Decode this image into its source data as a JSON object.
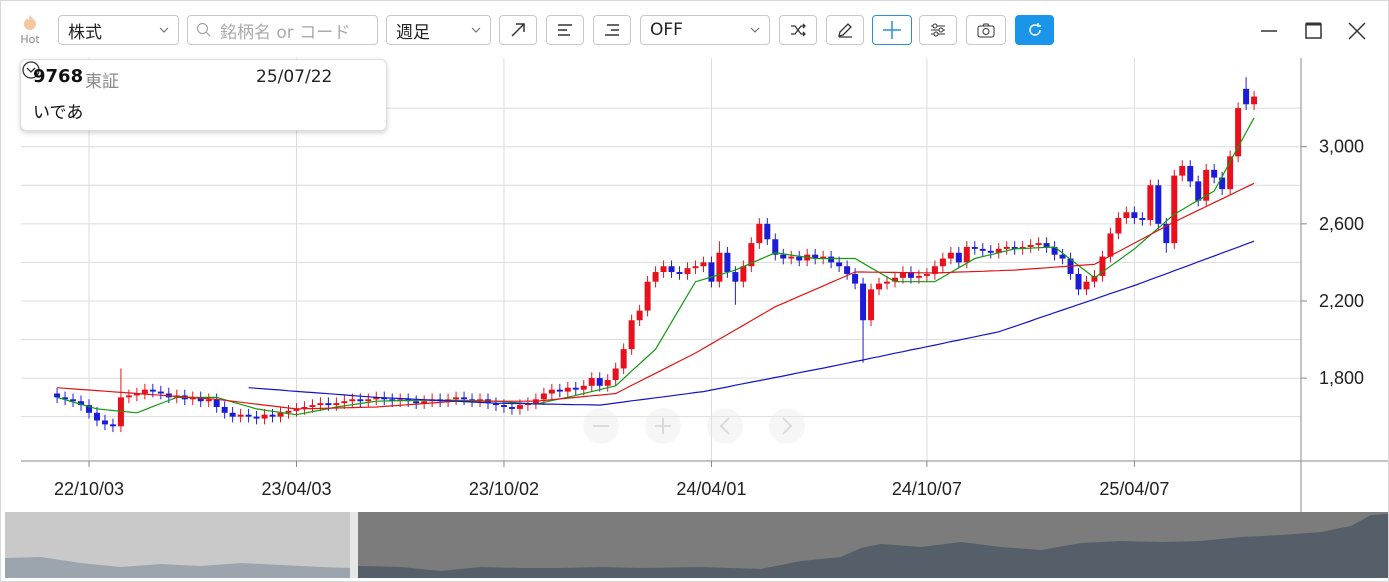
{
  "toolbar": {
    "hot": "Hot",
    "market": "株式",
    "search_placeholder": "銘柄名 or コード",
    "period": "週足",
    "indicator": "OFF"
  },
  "info": {
    "code": "9768",
    "exchange": "東証",
    "date": "25/07/22",
    "name": "いであ"
  },
  "chart_data": {
    "type": "candlestick",
    "categories": [
      null,
      null,
      null,
      null,
      "22/10/03",
      null,
      null,
      null,
      null,
      null,
      null,
      null,
      null,
      null,
      null,
      null,
      null,
      null,
      null,
      null,
      null,
      null,
      null,
      null,
      null,
      null,
      null,
      null,
      null,
      null,
      "23/04/03",
      null,
      null,
      null,
      null,
      null,
      null,
      null,
      null,
      null,
      null,
      null,
      null,
      null,
      null,
      null,
      null,
      null,
      null,
      null,
      null,
      null,
      null,
      null,
      null,
      null,
      "23/10/02",
      null,
      null,
      null,
      null,
      null,
      null,
      null,
      null,
      null,
      null,
      null,
      null,
      null,
      null,
      null,
      null,
      null,
      null,
      null,
      null,
      null,
      null,
      null,
      null,
      null,
      "24/04/01",
      null,
      null,
      null,
      null,
      null,
      null,
      null,
      null,
      null,
      null,
      null,
      null,
      null,
      null,
      null,
      null,
      null,
      null,
      null,
      null,
      null,
      null,
      null,
      null,
      null,
      null,
      "24/10/07",
      null,
      null,
      null,
      null,
      null,
      null,
      null,
      null,
      null,
      null,
      null,
      null,
      null,
      null,
      null,
      null,
      null,
      null,
      null,
      null,
      null,
      null,
      null,
      null,
      null,
      "25/04/07",
      null,
      null,
      null,
      null,
      null,
      null,
      null,
      null,
      null,
      null,
      null,
      null,
      null,
      null,
      null
    ],
    "open": [
      1720,
      1700,
      1690,
      1680,
      1660,
      1620,
      1580,
      1560,
      1550,
      1700,
      1710,
      1720,
      1740,
      1730,
      1720,
      1700,
      1710,
      1690,
      1700,
      1680,
      1690,
      1650,
      1620,
      1600,
      1610,
      1600,
      1590,
      1610,
      1600,
      1620,
      1630,
      1640,
      1650,
      1660,
      1670,
      1660,
      1670,
      1680,
      1690,
      1680,
      1690,
      1700,
      1690,
      1680,
      1690,
      1680,
      1670,
      1680,
      1690,
      1680,
      1690,
      1700,
      1690,
      1680,
      1690,
      1670,
      1660,
      1650,
      1640,
      1660,
      1670,
      1690,
      1720,
      1740,
      1730,
      1750,
      1740,
      1760,
      1800,
      1760,
      1790,
      1850,
      1950,
      2100,
      2150,
      2300,
      2350,
      2380,
      2350,
      2340,
      2370,
      2380,
      2400,
      2300,
      2450,
      2350,
      2300,
      2380,
      2500,
      2600,
      2520,
      2440,
      2420,
      2430,
      2410,
      2440,
      2420,
      2430,
      2400,
      2380,
      2340,
      2290,
      2100,
      2260,
      2290,
      2300,
      2320,
      2350,
      2320,
      2330,
      2340,
      2380,
      2420,
      2450,
      2400,
      2480,
      2470,
      2460,
      2450,
      2470,
      2480,
      2470,
      2480,
      2490,
      2500,
      2480,
      2440,
      2420,
      2340,
      2260,
      2300,
      2330,
      2430,
      2550,
      2630,
      2660,
      2630,
      2620,
      2800,
      2600,
      2500,
      2850,
      2900,
      2820,
      2720,
      2880,
      2840,
      2780,
      2950,
      3300,
      3220
    ],
    "high": [
      1750,
      1730,
      1720,
      1710,
      1690,
      1650,
      1610,
      1590,
      1850,
      1740,
      1750,
      1770,
      1770,
      1760,
      1750,
      1740,
      1740,
      1730,
      1730,
      1720,
      1720,
      1680,
      1650,
      1640,
      1640,
      1630,
      1640,
      1640,
      1650,
      1660,
      1670,
      1680,
      1690,
      1700,
      1700,
      1700,
      1710,
      1720,
      1720,
      1720,
      1730,
      1730,
      1720,
      1720,
      1720,
      1710,
      1710,
      1720,
      1720,
      1720,
      1730,
      1730,
      1720,
      1720,
      1720,
      1700,
      1690,
      1680,
      1690,
      1700,
      1720,
      1750,
      1770,
      1770,
      1780,
      1780,
      1790,
      1830,
      1830,
      1820,
      1880,
      1980,
      2130,
      2180,
      2330,
      2380,
      2410,
      2410,
      2380,
      2400,
      2410,
      2430,
      2430,
      2510,
      2480,
      2380,
      2410,
      2530,
      2630,
      2630,
      2550,
      2470,
      2460,
      2460,
      2470,
      2470,
      2460,
      2460,
      2430,
      2410,
      2370,
      2320,
      2290,
      2320,
      2330,
      2350,
      2380,
      2380,
      2360,
      2370,
      2410,
      2450,
      2480,
      2480,
      2510,
      2510,
      2500,
      2490,
      2500,
      2510,
      2510,
      2510,
      2520,
      2530,
      2530,
      2510,
      2470,
      2450,
      2370,
      2330,
      2360,
      2460,
      2580,
      2660,
      2690,
      2690,
      2660,
      2830,
      2830,
      2630,
      2880,
      2930,
      2930,
      2850,
      2910,
      2910,
      2870,
      2980,
      3230,
      3360,
      3290
    ],
    "low": [
      1670,
      1660,
      1650,
      1630,
      1590,
      1550,
      1530,
      1520,
      1520,
      1670,
      1680,
      1690,
      1700,
      1690,
      1670,
      1670,
      1660,
      1660,
      1650,
      1650,
      1620,
      1590,
      1570,
      1570,
      1570,
      1560,
      1560,
      1570,
      1570,
      1590,
      1600,
      1610,
      1620,
      1630,
      1630,
      1630,
      1640,
      1650,
      1650,
      1650,
      1660,
      1660,
      1650,
      1650,
      1650,
      1640,
      1640,
      1650,
      1650,
      1650,
      1660,
      1660,
      1650,
      1650,
      1640,
      1630,
      1620,
      1610,
      1610,
      1630,
      1640,
      1660,
      1690,
      1700,
      1700,
      1710,
      1710,
      1730,
      1730,
      1730,
      1760,
      1820,
      1920,
      2070,
      2120,
      2270,
      2320,
      2320,
      2310,
      2310,
      2340,
      2350,
      2270,
      2270,
      2320,
      2180,
      2270,
      2350,
      2470,
      2490,
      2410,
      2390,
      2390,
      2380,
      2380,
      2390,
      2390,
      2370,
      2350,
      2310,
      2260,
      1880,
      2070,
      2230,
      2260,
      2270,
      2290,
      2290,
      2290,
      2300,
      2310,
      2350,
      2390,
      2370,
      2370,
      2440,
      2430,
      2420,
      2420,
      2440,
      2440,
      2440,
      2450,
      2460,
      2450,
      2410,
      2390,
      2310,
      2230,
      2230,
      2270,
      2300,
      2400,
      2520,
      2600,
      2600,
      2590,
      2590,
      2570,
      2450,
      2470,
      2820,
      2790,
      2690,
      2690,
      2810,
      2750,
      2750,
      2920,
      3190,
      3190
    ],
    "close": [
      1700,
      1690,
      1680,
      1660,
      1620,
      1580,
      1560,
      1550,
      1700,
      1710,
      1720,
      1740,
      1730,
      1720,
      1700,
      1710,
      1690,
      1700,
      1680,
      1690,
      1650,
      1620,
      1600,
      1610,
      1600,
      1590,
      1610,
      1600,
      1620,
      1630,
      1640,
      1650,
      1660,
      1670,
      1660,
      1670,
      1680,
      1690,
      1680,
      1690,
      1700,
      1690,
      1680,
      1690,
      1680,
      1670,
      1680,
      1690,
      1680,
      1690,
      1700,
      1690,
      1680,
      1690,
      1670,
      1660,
      1650,
      1640,
      1660,
      1670,
      1690,
      1720,
      1740,
      1730,
      1750,
      1740,
      1760,
      1800,
      1760,
      1790,
      1850,
      1950,
      2100,
      2150,
      2300,
      2350,
      2380,
      2350,
      2340,
      2370,
      2380,
      2400,
      2300,
      2450,
      2350,
      2300,
      2380,
      2500,
      2600,
      2520,
      2440,
      2420,
      2430,
      2410,
      2440,
      2420,
      2430,
      2400,
      2380,
      2340,
      2290,
      2100,
      2260,
      2290,
      2300,
      2320,
      2350,
      2320,
      2330,
      2340,
      2380,
      2420,
      2450,
      2400,
      2480,
      2470,
      2460,
      2450,
      2470,
      2480,
      2470,
      2480,
      2490,
      2500,
      2480,
      2440,
      2420,
      2340,
      2260,
      2300,
      2330,
      2430,
      2550,
      2630,
      2660,
      2630,
      2620,
      2800,
      2600,
      2500,
      2850,
      2900,
      2820,
      2720,
      2880,
      2840,
      2780,
      2950,
      3200,
      3220,
      3260
    ],
    "up_color": "#e8101c",
    "down_color": "#1c1cd6",
    "series": [
      {
        "color": "#129a12",
        "values": [
          1700,
          1688,
          1676,
          1664,
          1652,
          1640,
          1636,
          1632,
          1628,
          1624,
          1620,
          1636,
          1652,
          1668,
          1684,
          1700,
          1700,
          1700,
          1700,
          1700,
          1700,
          1688,
          1676,
          1664,
          1652,
          1640,
          1634,
          1628,
          1622,
          1616,
          1610,
          1618,
          1626,
          1634,
          1642,
          1650,
          1656,
          1662,
          1668,
          1674,
          1680,
          1681,
          1682,
          1683,
          1684,
          1685,
          1685,
          1685,
          1685,
          1685,
          1685,
          1684,
          1683,
          1682,
          1681,
          1680,
          1677,
          1674,
          1671,
          1668,
          1665,
          1674,
          1683,
          1692,
          1701,
          1710,
          1720,
          1730,
          1740,
          1750,
          1760,
          1798,
          1836,
          1874,
          1912,
          1950,
          2020,
          2090,
          2160,
          2230,
          2300,
          2312,
          2324,
          2336,
          2348,
          2360,
          2378,
          2396,
          2414,
          2432,
          2450,
          2444,
          2438,
          2432,
          2426,
          2420,
          2420,
          2420,
          2420,
          2420,
          2420,
          2396,
          2372,
          2348,
          2324,
          2300,
          2300,
          2300,
          2300,
          2300,
          2300,
          2324,
          2348,
          2372,
          2396,
          2420,
          2430,
          2440,
          2450,
          2460,
          2470,
          2472,
          2474,
          2476,
          2478,
          2480,
          2448,
          2416,
          2384,
          2352,
          2320,
          2350,
          2380,
          2410,
          2440,
          2470,
          2506,
          2542,
          2578,
          2614,
          2650,
          2674,
          2698,
          2722,
          2746,
          2770,
          2846,
          2922,
          2998,
          3074,
          3150
        ]
      },
      {
        "color": "#e01414",
        "values": [
          1750,
          1747,
          1744,
          1741,
          1738,
          1735,
          1732,
          1729,
          1726,
          1723,
          1720,
          1717,
          1714,
          1711,
          1708,
          1705,
          1702,
          1699,
          1696,
          1693,
          1690,
          1685,
          1680,
          1675,
          1670,
          1665,
          1660,
          1655,
          1650,
          1645,
          1640,
          1641,
          1642,
          1643,
          1644,
          1645,
          1646,
          1647,
          1648,
          1649,
          1650,
          1653,
          1656,
          1659,
          1662,
          1665,
          1668,
          1671,
          1674,
          1677,
          1680,
          1680,
          1680,
          1680,
          1680,
          1680,
          1680,
          1680,
          1680,
          1680,
          1680,
          1684,
          1688,
          1692,
          1696,
          1700,
          1704,
          1708,
          1712,
          1716,
          1720,
          1741,
          1762,
          1783,
          1804,
          1825,
          1846,
          1867,
          1888,
          1909,
          1930,
          1954,
          1978,
          2002,
          2026,
          2050,
          2074,
          2098,
          2122,
          2146,
          2170,
          2188,
          2206,
          2224,
          2242,
          2260,
          2278,
          2296,
          2314,
          2332,
          2350,
          2350,
          2349,
          2349,
          2348,
          2348,
          2347,
          2347,
          2346,
          2346,
          2345,
          2347,
          2348,
          2350,
          2351,
          2353,
          2354,
          2356,
          2357,
          2359,
          2360,
          2363,
          2366,
          2369,
          2372,
          2375,
          2378,
          2381,
          2384,
          2387,
          2390,
          2412,
          2434,
          2456,
          2478,
          2500,
          2522,
          2544,
          2566,
          2588,
          2610,
          2630,
          2650,
          2670,
          2690,
          2710,
          2730,
          2750,
          2770,
          2790,
          2810
        ]
      },
      {
        "color": "#1414c8",
        "values": [
          null,
          null,
          null,
          null,
          null,
          null,
          null,
          null,
          null,
          null,
          null,
          null,
          null,
          null,
          null,
          null,
          null,
          null,
          null,
          null,
          null,
          null,
          null,
          null,
          1750,
          1747,
          1744,
          1741,
          1738,
          1734,
          1731,
          1728,
          1725,
          1722,
          1719,
          1716,
          1713,
          1709,
          1706,
          1703,
          1700,
          1698,
          1696,
          1694,
          1692,
          1690,
          1688,
          1686,
          1684,
          1682,
          1680,
          1678,
          1676,
          1674,
          1672,
          1670,
          1669,
          1668,
          1668,
          1667,
          1666,
          1665,
          1665,
          1664,
          1663,
          1662,
          1662,
          1661,
          1660,
          1665,
          1671,
          1676,
          1682,
          1687,
          1692,
          1698,
          1703,
          1708,
          1714,
          1719,
          1725,
          1730,
          1738,
          1746,
          1754,
          1763,
          1771,
          1779,
          1787,
          1795,
          1803,
          1811,
          1819,
          1828,
          1836,
          1844,
          1852,
          1860,
          1869,
          1877,
          1886,
          1894,
          1903,
          1911,
          1920,
          1929,
          1937,
          1946,
          1954,
          1963,
          1971,
          1980,
          1989,
          1997,
          2006,
          2014,
          2023,
          2031,
          2040,
          2054,
          2068,
          2082,
          2096,
          2111,
          2125,
          2139,
          2153,
          2167,
          2181,
          2195,
          2209,
          2224,
          2238,
          2252,
          2266,
          2280,
          2295,
          2311,
          2326,
          2341,
          2357,
          2372,
          2387,
          2403,
          2418,
          2433,
          2449,
          2464,
          2479,
          2495,
          2510
        ]
      }
    ],
    "ylim": [
      1370,
      3460
    ],
    "yticks": [
      {
        "value": 1800,
        "label": "1,800"
      },
      {
        "value": 2200,
        "label": "2,200"
      },
      {
        "value": 2600,
        "label": "2,600"
      },
      {
        "value": 3000,
        "label": "3,000"
      }
    ],
    "minor_yticks": [
      1600,
      2000,
      2400,
      2800,
      3200
    ],
    "grid": true
  }
}
